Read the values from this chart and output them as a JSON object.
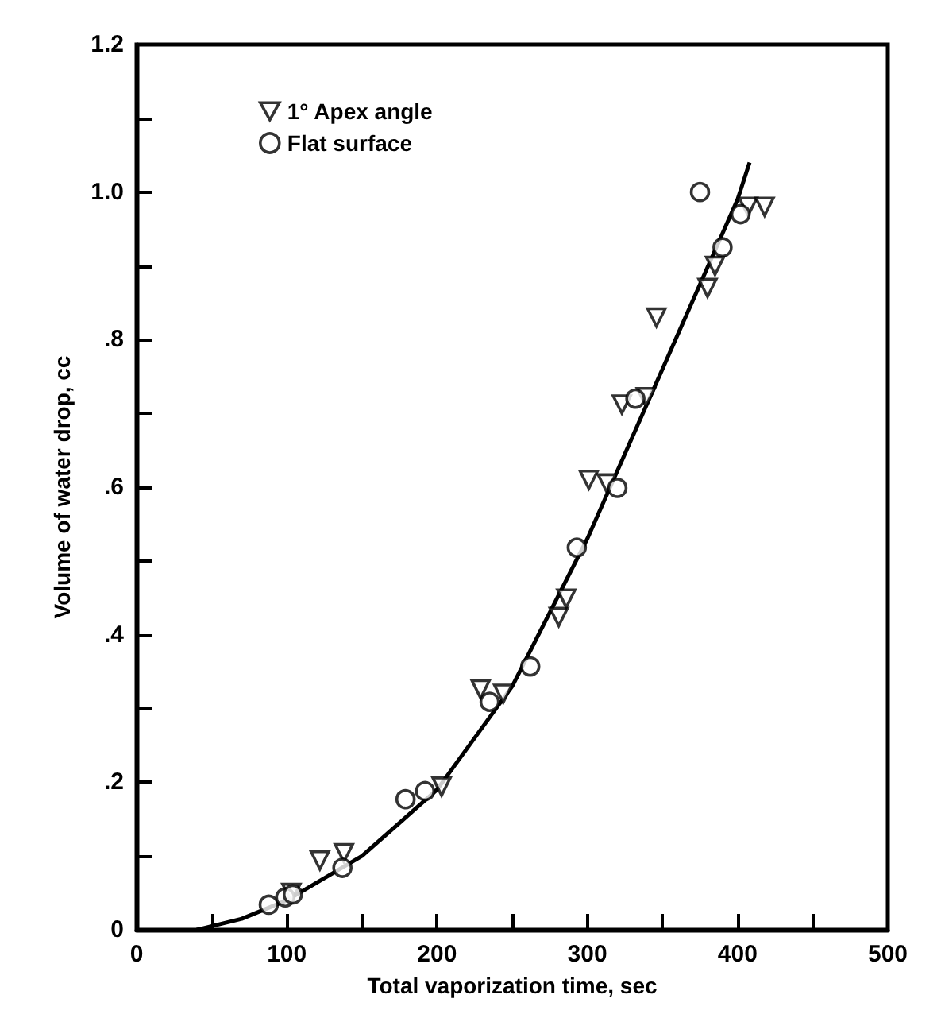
{
  "chart_data": {
    "type": "scatter",
    "xlabel": "Total vaporization time, sec",
    "ylabel": "Volume of water drop, cc",
    "xlim": [
      0,
      500
    ],
    "ylim": [
      0,
      1.2
    ],
    "xticks": [
      0,
      {
        "value": 50,
        "label": null
      },
      100,
      {
        "value": 150,
        "label": null
      },
      200,
      {
        "value": 250,
        "label": null
      },
      300,
      {
        "value": 350,
        "label": null
      },
      400,
      {
        "value": 450,
        "label": null
      },
      500
    ],
    "yticks": [
      0,
      {
        "value": 0.1,
        "label": null
      },
      {
        "value": 0.2,
        "label": ".2"
      },
      {
        "value": 0.3,
        "label": null
      },
      {
        "value": 0.4,
        "label": ".4"
      },
      {
        "value": 0.5,
        "label": null
      },
      {
        "value": 0.6,
        "label": ".6"
      },
      {
        "value": 0.7,
        "label": null
      },
      {
        "value": 0.8,
        "label": ".8"
      },
      {
        "value": 0.9,
        "label": null
      },
      {
        "value": 1.0,
        "label": "1.0"
      },
      {
        "value": 1.1,
        "label": null
      },
      {
        "value": 1.2,
        "label": "1.2"
      }
    ],
    "grid": false,
    "legend": "top left",
    "series": [
      {
        "name": "1° Apex angle",
        "color": "#000000",
        "marker": "triangle",
        "x": [
          103,
          122,
          138,
          203,
          229,
          244,
          281,
          286,
          301,
          313,
          323,
          339,
          346,
          380,
          385,
          407,
          418
        ],
        "values": [
          0.05,
          0.094,
          0.104,
          0.194,
          0.326,
          0.32,
          0.424,
          0.449,
          0.61,
          0.605,
          0.712,
          0.722,
          0.83,
          0.87,
          0.9,
          0.98,
          0.98
        ]
      },
      {
        "name": "Flat surface",
        "color": "#000000",
        "marker": "circle",
        "x": [
          88,
          99,
          104,
          137,
          179,
          192,
          235,
          262,
          293,
          320,
          332,
          375,
          390,
          402
        ],
        "values": [
          0.034,
          0.044,
          0.048,
          0.084,
          0.177,
          0.188,
          0.309,
          0.357,
          0.518,
          0.599,
          0.72,
          1.0,
          0.925,
          0.97
        ]
      },
      {
        "type": "line",
        "color": "#000000",
        "marker": "none",
        "line_style": "solid",
        "x": [
          40,
          70,
          100,
          150,
          200,
          250,
          300,
          350,
          400,
          408
        ],
        "values": [
          0,
          0.015,
          0.04,
          0.1,
          0.19,
          0.33,
          0.53,
          0.76,
          0.99,
          1.04
        ]
      }
    ]
  }
}
